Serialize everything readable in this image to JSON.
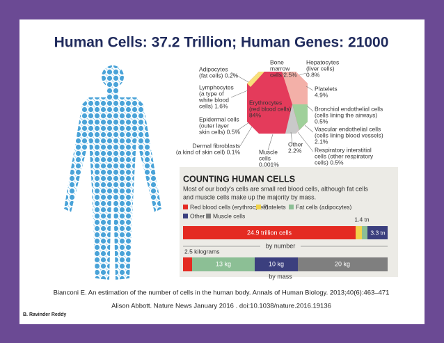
{
  "header": {
    "title": "Human Cells: 37.2 Trillion; Human Genes: 21000"
  },
  "pie_labels": [
    [
      "Adipocytes",
      "(fat cells) 0.2%"
    ],
    [
      "Lymphocytes",
      "(a type of",
      "white blood",
      "cells) 1.6%"
    ],
    [
      "Epidermal cells",
      "(outer layer",
      "skin cells) 0.5%"
    ],
    [
      "Dermal fibroblasts",
      "(a kind of skin cell) 0.1%"
    ],
    [
      "Bone",
      "marrow",
      "cells 2.5%"
    ],
    [
      "Hepatocytes",
      "(liver cells)",
      "0.8%"
    ],
    [
      "Erythrocytes",
      "(red blood cells)",
      "84%"
    ],
    [
      "Platelets",
      "4.9%"
    ],
    [
      "Bronchial endothelial cells",
      "(cells lining the airways)",
      "0.5%"
    ],
    [
      "Vascular endothelial cells",
      "(cells lining blood vessels)",
      "2.1%"
    ],
    [
      "Respiratory interstitial",
      "cells (other respiratory",
      "cells) 0.5%"
    ],
    [
      "Other",
      "2.2%"
    ],
    [
      "Muscle",
      "cells",
      "0.001%"
    ]
  ],
  "counting": {
    "heading": "COUNTING HUMAN CELLS",
    "description": [
      "Most of our body's cells are small red blood cells, although fat cells",
      "and muscle cells make up the majority by mass."
    ],
    "legend": [
      "Red blood cells (erythrocytes)",
      "Platelets",
      "Fat cells (adipocytes)",
      "Other",
      "Muscle cells"
    ],
    "number_bar": [
      "24.9 trillion cells",
      "1.4 tn",
      "3.3 tn"
    ],
    "number_caption": "by number",
    "mass_bar": [
      "2.5 kilograms",
      "13 kg",
      "10 kg",
      "20 kg"
    ],
    "mass_caption": "by mass"
  },
  "citations": [
    "Bianconi E. An estimation of the number of cells in the human body. Annals of Human Biology. 2013;40(6):463–471",
    "Alison Abbott. Nature News January 2016 . doi:10.1038/nature.2016.19136"
  ],
  "footer": {
    "author": "B. Ravinder Reddy"
  }
}
